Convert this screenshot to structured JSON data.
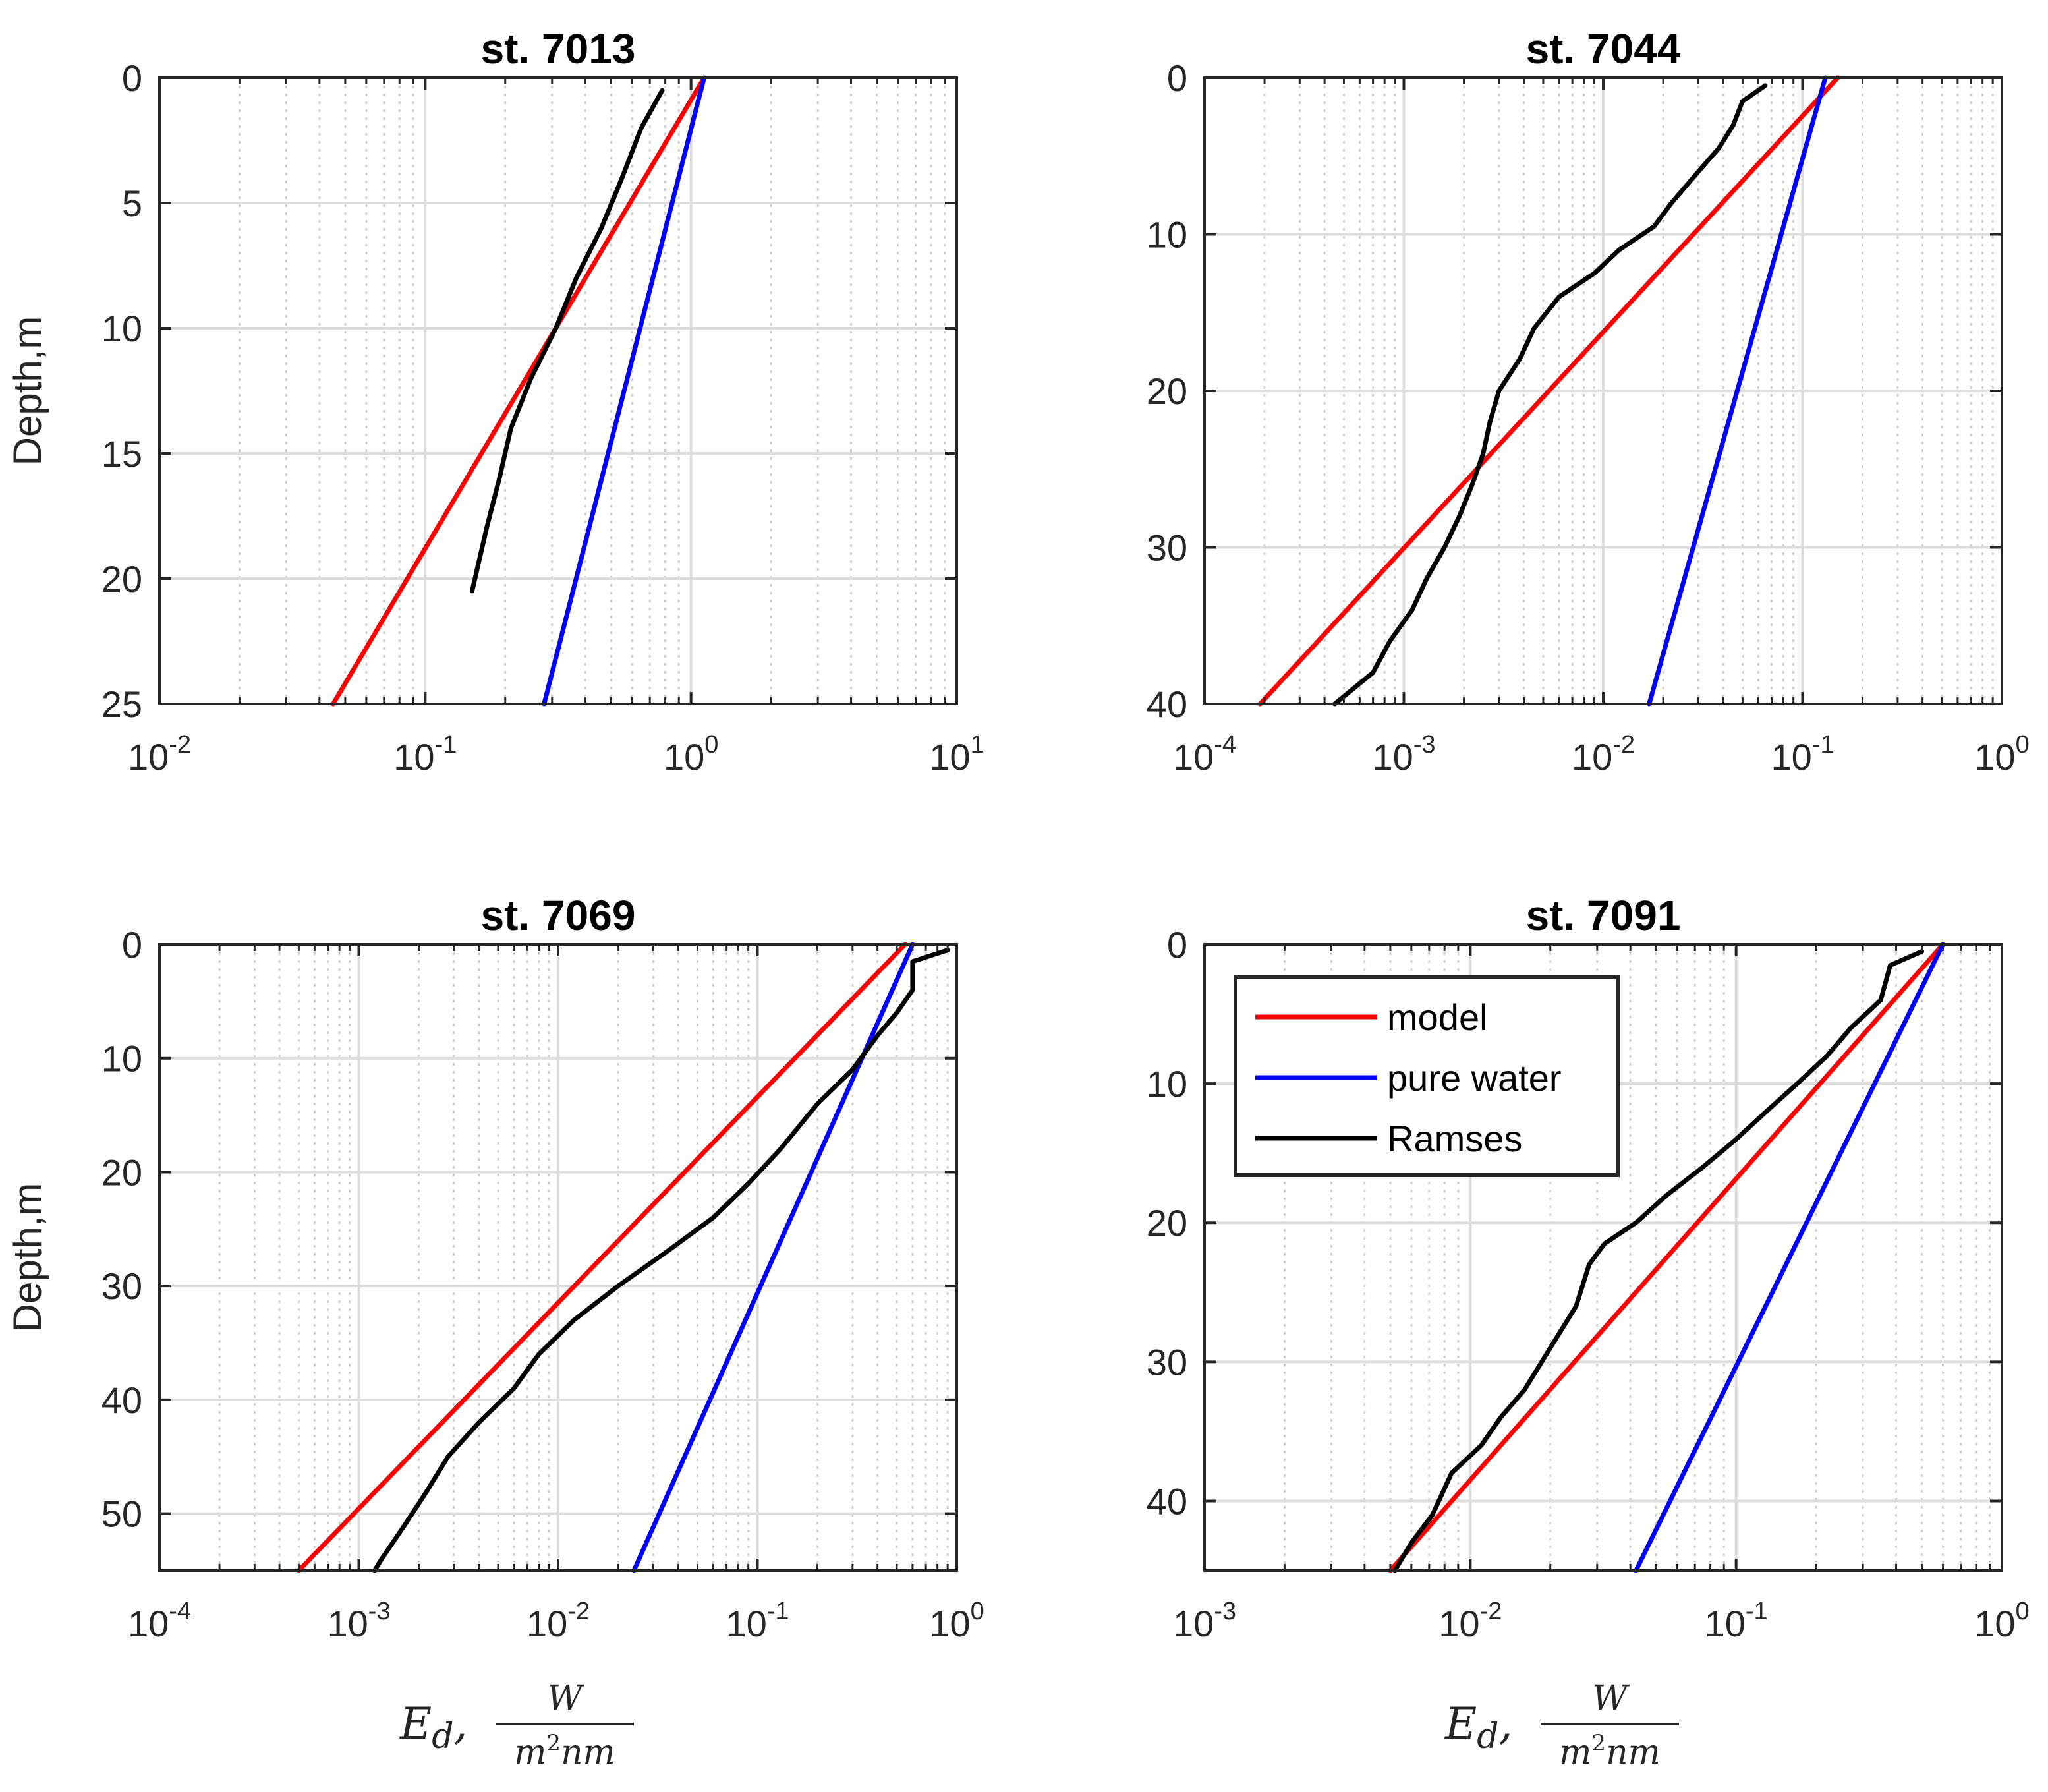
{
  "chart_data": [
    {
      "type": "line",
      "title": "st. 7013",
      "ylabel": "Depth,m",
      "xlabel_main": "E",
      "xlabel_sub": "d",
      "xlabel_num": "W",
      "xlabel_den_a": "m",
      "xlabel_den_exp": "2",
      "xlabel_den_b": "nm",
      "xscale": "log",
      "xlim_exp": [
        -2,
        1
      ],
      "ylim": [
        0,
        25
      ],
      "yticks": [
        0,
        5,
        10,
        15,
        20,
        25
      ],
      "xtick_base": "10",
      "xtick_exps": [
        "-2",
        "-1",
        "0",
        "1"
      ],
      "grid": true,
      "series": [
        {
          "name": "model",
          "color": "#ff0000",
          "points": [
            [
              1.12,
              0
            ],
            [
              0.045,
              25
            ]
          ]
        },
        {
          "name": "pure water",
          "color": "#0000ff",
          "points": [
            [
              1.12,
              0
            ],
            [
              0.28,
              25
            ]
          ]
        },
        {
          "name": "Ramses",
          "color": "#000000",
          "points": [
            [
              0.78,
              0.5
            ],
            [
              0.65,
              2
            ],
            [
              0.55,
              4
            ],
            [
              0.46,
              6
            ],
            [
              0.37,
              8
            ],
            [
              0.31,
              10
            ],
            [
              0.25,
              12
            ],
            [
              0.21,
              14
            ],
            [
              0.19,
              16
            ],
            [
              0.17,
              18
            ],
            [
              0.15,
              20.5
            ]
          ]
        }
      ]
    },
    {
      "type": "line",
      "title": "st. 7044",
      "ylabel": "",
      "xscale": "log",
      "xlim_exp": [
        -4,
        0
      ],
      "ylim": [
        0,
        40
      ],
      "yticks": [
        0,
        10,
        20,
        30,
        40
      ],
      "xtick_base": "10",
      "xtick_exps": [
        "-4",
        "-3",
        "-2",
        "-1",
        "0"
      ],
      "grid": true,
      "series": [
        {
          "name": "model",
          "color": "#ff0000",
          "points": [
            [
              0.15,
              0
            ],
            [
              0.00019,
              40
            ]
          ]
        },
        {
          "name": "pure water",
          "color": "#0000ff",
          "points": [
            [
              0.13,
              0
            ],
            [
              0.017,
              40
            ]
          ]
        },
        {
          "name": "Ramses",
          "color": "#000000",
          "points": [
            [
              0.065,
              0.5
            ],
            [
              0.05,
              1.5
            ],
            [
              0.045,
              3
            ],
            [
              0.038,
              4.5
            ],
            [
              0.03,
              6
            ],
            [
              0.022,
              8
            ],
            [
              0.018,
              9.5
            ],
            [
              0.012,
              11
            ],
            [
              0.009,
              12.5
            ],
            [
              0.006,
              14
            ],
            [
              0.0045,
              16
            ],
            [
              0.0038,
              18
            ],
            [
              0.003,
              20
            ],
            [
              0.0027,
              22
            ],
            [
              0.0025,
              24
            ],
            [
              0.0022,
              26
            ],
            [
              0.0019,
              28
            ],
            [
              0.0016,
              30
            ],
            [
              0.0013,
              32
            ],
            [
              0.0011,
              34
            ],
            [
              0.00085,
              36
            ],
            [
              0.0007,
              38
            ],
            [
              0.00045,
              40
            ]
          ]
        }
      ]
    },
    {
      "type": "line",
      "title": "st. 7069",
      "ylabel": "Depth,m",
      "xscale": "log",
      "xlim_exp": [
        -4,
        0
      ],
      "ylim": [
        0,
        55
      ],
      "yticks": [
        0,
        10,
        20,
        30,
        40,
        50
      ],
      "xtick_base": "10",
      "xtick_exps": [
        "-4",
        "-3",
        "-2",
        "-1",
        "0"
      ],
      "grid": true,
      "series": [
        {
          "name": "model",
          "color": "#ff0000",
          "points": [
            [
              0.55,
              0
            ],
            [
              0.0005,
              55
            ]
          ]
        },
        {
          "name": "pure water",
          "color": "#0000ff",
          "points": [
            [
              0.6,
              0
            ],
            [
              0.024,
              55
            ]
          ]
        },
        {
          "name": "Ramses",
          "color": "#000000",
          "points": [
            [
              0.9,
              0.5
            ],
            [
              0.6,
              1.5
            ],
            [
              0.6,
              4
            ],
            [
              0.5,
              6
            ],
            [
              0.4,
              8
            ],
            [
              0.3,
              11
            ],
            [
              0.2,
              14
            ],
            [
              0.13,
              18
            ],
            [
              0.09,
              21
            ],
            [
              0.06,
              24
            ],
            [
              0.035,
              27
            ],
            [
              0.02,
              30
            ],
            [
              0.012,
              33
            ],
            [
              0.008,
              36
            ],
            [
              0.006,
              39
            ],
            [
              0.004,
              42
            ],
            [
              0.0028,
              45
            ],
            [
              0.0022,
              48
            ],
            [
              0.0017,
              51
            ],
            [
              0.0013,
              54
            ],
            [
              0.0012,
              55
            ]
          ]
        }
      ]
    },
    {
      "type": "line",
      "title": "st. 7091",
      "ylabel": "",
      "xscale": "log",
      "xlim_exp": [
        -3,
        0
      ],
      "ylim": [
        0,
        45
      ],
      "yticks": [
        0,
        10,
        20,
        30,
        40
      ],
      "xtick_base": "10",
      "xtick_exps": [
        "-3",
        "-2",
        "-1",
        "0"
      ],
      "grid": true,
      "series": [
        {
          "name": "model",
          "color": "#ff0000",
          "points": [
            [
              0.6,
              0
            ],
            [
              0.005,
              45
            ]
          ]
        },
        {
          "name": "pure water",
          "color": "#0000ff",
          "points": [
            [
              0.6,
              0
            ],
            [
              0.042,
              45
            ]
          ]
        },
        {
          "name": "Ramses",
          "color": "#000000",
          "points": [
            [
              0.5,
              0.5
            ],
            [
              0.38,
              1.5
            ],
            [
              0.35,
              4
            ],
            [
              0.27,
              6
            ],
            [
              0.22,
              8
            ],
            [
              0.17,
              10
            ],
            [
              0.13,
              12
            ],
            [
              0.1,
              14
            ],
            [
              0.075,
              16
            ],
            [
              0.055,
              18
            ],
            [
              0.042,
              20
            ],
            [
              0.032,
              21.5
            ],
            [
              0.028,
              23
            ],
            [
              0.025,
              26
            ],
            [
              0.02,
              29
            ],
            [
              0.016,
              32
            ],
            [
              0.013,
              34
            ],
            [
              0.011,
              36
            ],
            [
              0.0085,
              38
            ],
            [
              0.0072,
              41
            ],
            [
              0.006,
              43
            ],
            [
              0.0052,
              45
            ]
          ]
        }
      ],
      "legend": {
        "placement": "top-left",
        "entries": [
          "model",
          "pure water",
          "Ramses"
        ]
      }
    }
  ]
}
